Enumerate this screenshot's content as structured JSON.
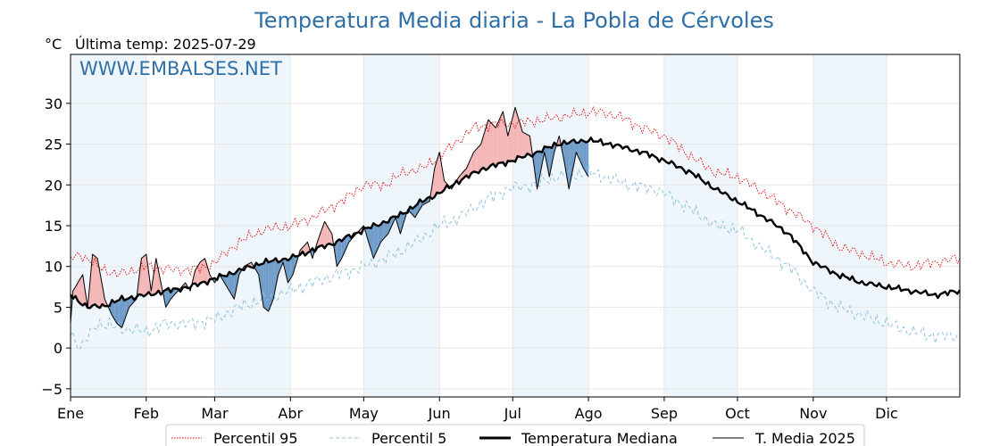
{
  "chart_data": {
    "type": "line",
    "title": "Temperatura Media diaria - La Pobla de Cérvoles",
    "unit_label": "°C",
    "subtitle": "Última temp: 2025-07-29",
    "watermark": "WWW.EMBALSES.NET",
    "ylim": [
      -6,
      36
    ],
    "yticks": [
      "30",
      "25",
      "20",
      "15",
      "10",
      "5",
      "0",
      "−5"
    ],
    "ytick_values": [
      30,
      25,
      20,
      15,
      10,
      5,
      0,
      -5
    ],
    "months": [
      "Ene",
      "Feb",
      "Mar",
      "Abr",
      "May",
      "Jun",
      "Jul",
      "Ago",
      "Sep",
      "Oct",
      "Nov",
      "Dic"
    ],
    "month_start_day": [
      1,
      32,
      60,
      91,
      121,
      152,
      182,
      213,
      244,
      274,
      305,
      335
    ],
    "days_in_year": 365,
    "grid": true,
    "legend_position": "bottom",
    "colors": {
      "p95": "#e00000",
      "p5": "#8cc4dc",
      "median": "#000000",
      "year": "#000000",
      "above": "#f4b6b6",
      "below": "#6f9cc8",
      "band": "#eef5fb",
      "title": "#2e6fa7"
    },
    "series": [
      {
        "name": "Percentil 95",
        "style": "dotted",
        "anchors": [
          [
            1,
            11
          ],
          [
            5,
            11.5
          ],
          [
            12,
            10
          ],
          [
            20,
            9
          ],
          [
            32,
            10
          ],
          [
            45,
            9.5
          ],
          [
            55,
            9.8
          ],
          [
            60,
            10.5
          ],
          [
            70,
            13
          ],
          [
            80,
            14.5
          ],
          [
            91,
            15
          ],
          [
            100,
            16
          ],
          [
            112,
            18
          ],
          [
            121,
            20
          ],
          [
            130,
            20
          ],
          [
            137,
            21.5
          ],
          [
            145,
            22
          ],
          [
            152,
            23.5
          ],
          [
            160,
            25.5
          ],
          [
            166,
            27
          ],
          [
            175,
            27.5
          ],
          [
            182,
            27.5
          ],
          [
            195,
            28
          ],
          [
            205,
            28.5
          ],
          [
            215,
            29
          ],
          [
            225,
            28.5
          ],
          [
            235,
            27
          ],
          [
            244,
            26
          ],
          [
            255,
            23.5
          ],
          [
            265,
            21.5
          ],
          [
            274,
            21
          ],
          [
            285,
            19
          ],
          [
            295,
            17
          ],
          [
            305,
            15
          ],
          [
            315,
            12.5
          ],
          [
            325,
            11.5
          ],
          [
            335,
            10.5
          ],
          [
            345,
            10
          ],
          [
            355,
            10.5
          ],
          [
            365,
            11
          ]
        ]
      },
      {
        "name": "Percentil 5",
        "style": "dashed",
        "anchors": [
          [
            1,
            2
          ],
          [
            5,
            0
          ],
          [
            12,
            3
          ],
          [
            20,
            2.5
          ],
          [
            32,
            2
          ],
          [
            40,
            3
          ],
          [
            50,
            3
          ],
          [
            60,
            3.5
          ],
          [
            70,
            5
          ],
          [
            80,
            6
          ],
          [
            91,
            7
          ],
          [
            100,
            8
          ],
          [
            110,
            9
          ],
          [
            121,
            10
          ],
          [
            130,
            11
          ],
          [
            137,
            12
          ],
          [
            145,
            13.5
          ],
          [
            152,
            15
          ],
          [
            160,
            16
          ],
          [
            170,
            18
          ],
          [
            180,
            19.5
          ],
          [
            190,
            20
          ],
          [
            200,
            21
          ],
          [
            213,
            21.5
          ],
          [
            220,
            21
          ],
          [
            230,
            20
          ],
          [
            240,
            19.5
          ],
          [
            244,
            19
          ],
          [
            255,
            17
          ],
          [
            265,
            15
          ],
          [
            274,
            14.5
          ],
          [
            285,
            12
          ],
          [
            295,
            10
          ],
          [
            305,
            7
          ],
          [
            315,
            5
          ],
          [
            325,
            4
          ],
          [
            335,
            3
          ],
          [
            345,
            2
          ],
          [
            355,
            1.5
          ],
          [
            365,
            1.5
          ]
        ]
      },
      {
        "name": "Temperatura Mediana",
        "style": "solid-thick",
        "anchors": [
          [
            1,
            6.5
          ],
          [
            8,
            5
          ],
          [
            15,
            5.2
          ],
          [
            22,
            6
          ],
          [
            32,
            6.5
          ],
          [
            40,
            7
          ],
          [
            50,
            7.5
          ],
          [
            60,
            8.5
          ],
          [
            70,
            9.5
          ],
          [
            80,
            10.5
          ],
          [
            91,
            11
          ],
          [
            100,
            12
          ],
          [
            110,
            13
          ],
          [
            121,
            14.5
          ],
          [
            130,
            15.5
          ],
          [
            137,
            16.5
          ],
          [
            145,
            18
          ],
          [
            152,
            19
          ],
          [
            160,
            20.5
          ],
          [
            170,
            22
          ],
          [
            182,
            23
          ],
          [
            192,
            24
          ],
          [
            200,
            25
          ],
          [
            213,
            25.5
          ],
          [
            222,
            25
          ],
          [
            235,
            24
          ],
          [
            244,
            23
          ],
          [
            255,
            21.5
          ],
          [
            265,
            19.5
          ],
          [
            274,
            18
          ],
          [
            285,
            16
          ],
          [
            295,
            14
          ],
          [
            305,
            10.5
          ],
          [
            315,
            9
          ],
          [
            325,
            8
          ],
          [
            335,
            7.5
          ],
          [
            345,
            7
          ],
          [
            355,
            6.5
          ],
          [
            365,
            7
          ]
        ]
      },
      {
        "name": "T. Media 2025",
        "style": "solid-thin",
        "anchors": [
          [
            1,
            3
          ],
          [
            2,
            7
          ],
          [
            4,
            8
          ],
          [
            6,
            9
          ],
          [
            8,
            5
          ],
          [
            10,
            11.5
          ],
          [
            12,
            11
          ],
          [
            15,
            6
          ],
          [
            18,
            4
          ],
          [
            20,
            3
          ],
          [
            22,
            2.5
          ],
          [
            25,
            5
          ],
          [
            28,
            6
          ],
          [
            30,
            11
          ],
          [
            32,
            11.5
          ],
          [
            34,
            7
          ],
          [
            36,
            11
          ],
          [
            38,
            8
          ],
          [
            40,
            5
          ],
          [
            42,
            6
          ],
          [
            45,
            7
          ],
          [
            48,
            8
          ],
          [
            50,
            7
          ],
          [
            52,
            9.5
          ],
          [
            54,
            10.5
          ],
          [
            56,
            11
          ],
          [
            58,
            9
          ],
          [
            60,
            8
          ],
          [
            62,
            9
          ],
          [
            65,
            7.5
          ],
          [
            68,
            6
          ],
          [
            70,
            9
          ],
          [
            72,
            10
          ],
          [
            75,
            10.5
          ],
          [
            78,
            9
          ],
          [
            80,
            5
          ],
          [
            82,
            4.5
          ],
          [
            84,
            6
          ],
          [
            86,
            9
          ],
          [
            88,
            10.5
          ],
          [
            90,
            8
          ],
          [
            92,
            9
          ],
          [
            95,
            12
          ],
          [
            98,
            13
          ],
          [
            100,
            11
          ],
          [
            102,
            13
          ],
          [
            105,
            15.5
          ],
          [
            108,
            14
          ],
          [
            110,
            10
          ],
          [
            112,
            11
          ],
          [
            115,
            13
          ],
          [
            118,
            14
          ],
          [
            121,
            15
          ],
          [
            123,
            13
          ],
          [
            125,
            11
          ],
          [
            128,
            13
          ],
          [
            131,
            14
          ],
          [
            134,
            16
          ],
          [
            136,
            14
          ],
          [
            139,
            17
          ],
          [
            142,
            16
          ],
          [
            145,
            17.5
          ],
          [
            148,
            18
          ],
          [
            150,
            22
          ],
          [
            152,
            24
          ],
          [
            154,
            20.5
          ],
          [
            157,
            19.5
          ],
          [
            160,
            21
          ],
          [
            163,
            22
          ],
          [
            166,
            24
          ],
          [
            169,
            25
          ],
          [
            172,
            28
          ],
          [
            175,
            27
          ],
          [
            178,
            29
          ],
          [
            180,
            26
          ],
          [
            183,
            29.5
          ],
          [
            186,
            26.5
          ],
          [
            189,
            26
          ],
          [
            192,
            19.5
          ],
          [
            195,
            24
          ],
          [
            197,
            21
          ],
          [
            199,
            24
          ],
          [
            201,
            26
          ],
          [
            203,
            23
          ],
          [
            205,
            19.5
          ],
          [
            208,
            24
          ],
          [
            211,
            22
          ],
          [
            213,
            21
          ]
        ]
      }
    ]
  },
  "legend": [
    {
      "label": "Percentil 95"
    },
    {
      "label": "Percentil 5"
    },
    {
      "label": "Temperatura Mediana"
    },
    {
      "label": "T. Media 2025"
    }
  ]
}
